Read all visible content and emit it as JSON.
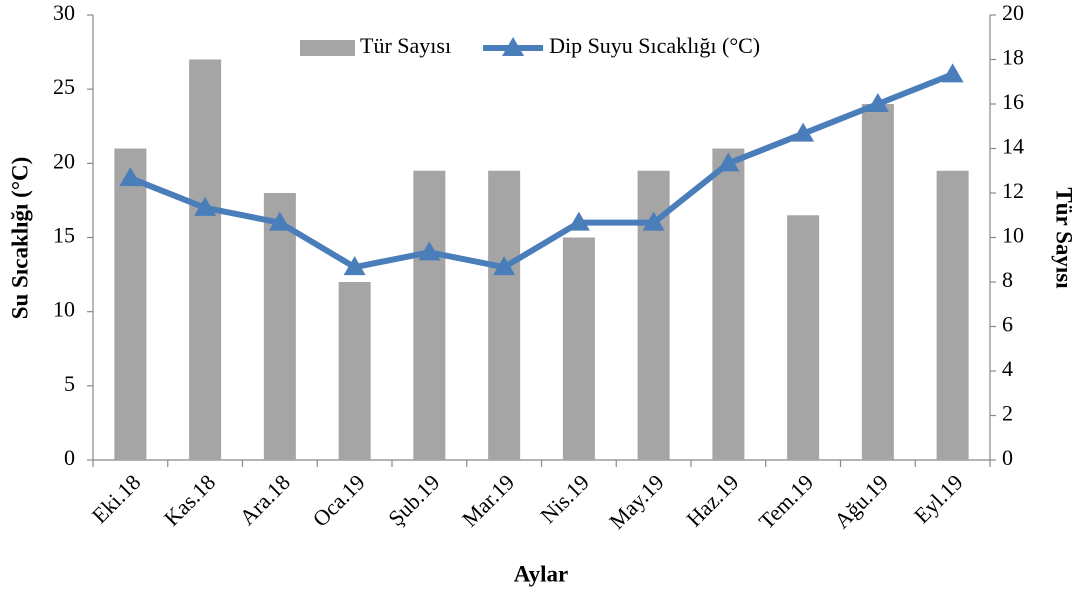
{
  "chart_data": {
    "type": "combo",
    "x_label": "Aylar",
    "y_label": "Su Sıcaklığı (°C)",
    "y2_label": "Tür Sayısı",
    "categories": [
      "Eki.18",
      "Kas.18",
      "Ara.18",
      "Oca.19",
      "Şub.19",
      "Mar.19",
      "Nis.19",
      "May.19",
      "Haz.19",
      "Tem.19",
      "Ağu.19",
      "Eyl.19"
    ],
    "series": [
      {
        "name": "Tür Sayısı",
        "type": "bar",
        "axis": "y2",
        "color": "#a5a5a5",
        "values": [
          14,
          18,
          12,
          8,
          13,
          13,
          10,
          13,
          14,
          11,
          16,
          13
        ]
      },
      {
        "name": "Dip Suyu Sıcaklığı (°C)",
        "type": "line",
        "axis": "y",
        "color": "#4a7ebb",
        "values": [
          19,
          17,
          16,
          13,
          14,
          13,
          16,
          16,
          20,
          22,
          24,
          26
        ]
      }
    ],
    "ylim": [
      0,
      30
    ],
    "yticks": [
      0,
      5,
      10,
      15,
      20,
      25,
      30
    ],
    "y2lim": [
      0,
      20
    ],
    "y2ticks": [
      0,
      2,
      4,
      6,
      8,
      10,
      12,
      14,
      16,
      18,
      20
    ],
    "grid": false,
    "legend": "top"
  }
}
